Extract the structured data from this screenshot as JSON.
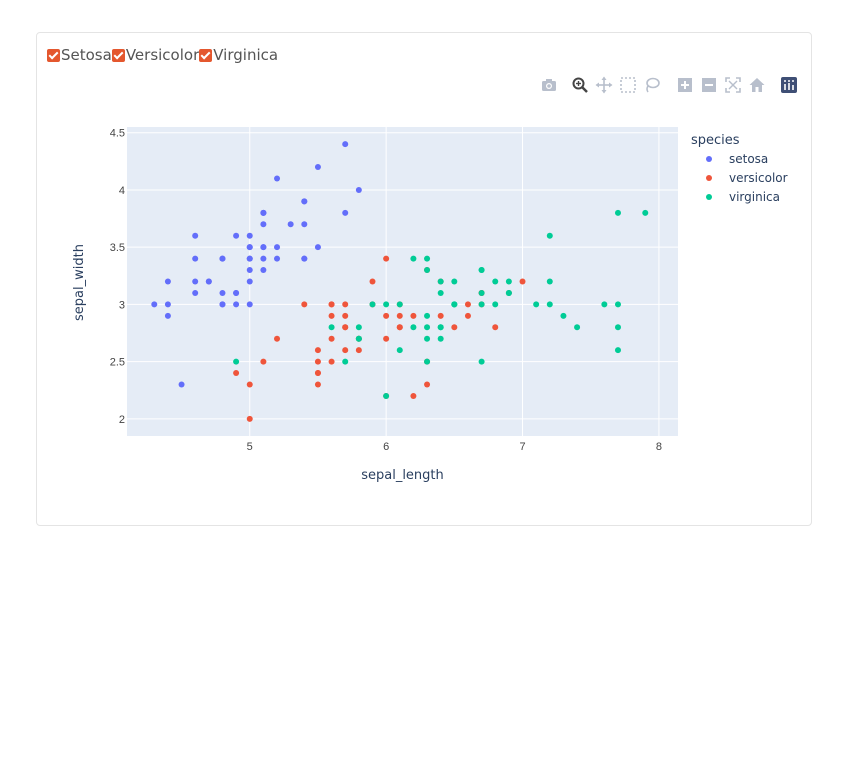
{
  "filters": [
    {
      "label": "Setosa",
      "checked": true
    },
    {
      "label": "Versicolor",
      "checked": true
    },
    {
      "label": "Virginica",
      "checked": true
    }
  ],
  "colors": {
    "setosa": "#636efa",
    "versicolor": "#ef553b",
    "virginica": "#00cc96",
    "checkbox": "#e4572e",
    "plot_bg": "#e5ecf6",
    "grid": "#ffffff"
  },
  "modebar_icons": [
    "camera-icon",
    "zoom-icon",
    "pan-icon",
    "box-select-icon",
    "lasso-select-icon",
    "zoom-in-icon",
    "zoom-out-icon",
    "autoscale-icon",
    "home-icon",
    "plotly-logo-icon"
  ],
  "chart_data": {
    "type": "scatter",
    "title": "",
    "xlabel": "sepal_length",
    "ylabel": "sepal_width",
    "xlim": [
      4.1,
      8.14
    ],
    "ylim": [
      1.85,
      4.55
    ],
    "xticks": [
      5,
      6,
      7,
      8
    ],
    "yticks": [
      2,
      2.5,
      3,
      3.5,
      4,
      4.5
    ],
    "grid": true,
    "legend": {
      "title": "species",
      "placement": "right"
    },
    "series": [
      {
        "name": "setosa",
        "color": "#636efa",
        "x": [
          5.1,
          4.9,
          4.7,
          4.6,
          5.0,
          5.4,
          4.6,
          5.0,
          4.4,
          4.9,
          5.4,
          4.8,
          4.8,
          4.3,
          5.8,
          5.7,
          5.4,
          5.1,
          5.7,
          5.1,
          5.4,
          5.1,
          4.6,
          5.1,
          4.8,
          5.0,
          5.0,
          5.2,
          5.2,
          4.7,
          4.8,
          5.4,
          5.2,
          5.5,
          4.9,
          5.0,
          5.5,
          4.9,
          4.4,
          5.1,
          5.0,
          4.5,
          4.4,
          5.0,
          5.1,
          4.8,
          5.1,
          4.6,
          5.3,
          5.0
        ],
        "y": [
          3.5,
          3.0,
          3.2,
          3.1,
          3.6,
          3.9,
          3.4,
          3.4,
          2.9,
          3.1,
          3.7,
          3.4,
          3.0,
          3.0,
          4.0,
          4.4,
          3.9,
          3.5,
          3.8,
          3.8,
          3.4,
          3.7,
          3.6,
          3.3,
          3.4,
          3.0,
          3.4,
          3.5,
          3.4,
          3.2,
          3.1,
          3.4,
          4.1,
          4.2,
          3.1,
          3.2,
          3.5,
          3.6,
          3.0,
          3.4,
          3.5,
          2.3,
          3.2,
          3.5,
          3.8,
          3.0,
          3.8,
          3.2,
          3.7,
          3.3
        ]
      },
      {
        "name": "versicolor",
        "color": "#ef553b",
        "x": [
          7.0,
          6.4,
          6.9,
          5.5,
          6.5,
          5.7,
          6.3,
          4.9,
          6.6,
          5.2,
          5.0,
          5.9,
          6.0,
          6.1,
          5.6,
          6.7,
          5.6,
          5.8,
          6.2,
          5.6,
          5.9,
          6.1,
          6.3,
          6.1,
          6.4,
          6.6,
          6.8,
          6.7,
          6.0,
          5.7,
          5.5,
          5.5,
          5.8,
          6.0,
          5.4,
          6.0,
          6.7,
          6.3,
          5.6,
          5.5,
          5.5,
          6.1,
          5.8,
          5.0,
          5.6,
          5.7,
          5.7,
          6.2,
          5.1,
          5.7
        ],
        "y": [
          3.2,
          3.2,
          3.1,
          2.3,
          2.8,
          2.8,
          3.3,
          2.4,
          2.9,
          2.7,
          2.0,
          3.0,
          2.2,
          2.9,
          2.9,
          3.1,
          3.0,
          2.7,
          2.2,
          2.5,
          3.2,
          2.8,
          2.5,
          2.8,
          2.9,
          3.0,
          2.8,
          3.0,
          2.9,
          2.6,
          2.4,
          2.4,
          2.7,
          2.7,
          3.0,
          3.4,
          3.1,
          2.3,
          3.0,
          2.5,
          2.6,
          3.0,
          2.6,
          2.3,
          2.7,
          3.0,
          2.9,
          2.9,
          2.5,
          2.8
        ]
      },
      {
        "name": "virginica",
        "color": "#00cc96",
        "x": [
          6.3,
          5.8,
          7.1,
          6.3,
          6.5,
          7.6,
          4.9,
          7.3,
          6.7,
          7.2,
          6.5,
          6.4,
          6.8,
          5.7,
          5.8,
          6.4,
          6.5,
          7.7,
          7.7,
          6.0,
          6.9,
          5.6,
          7.7,
          6.3,
          6.7,
          7.2,
          6.2,
          6.1,
          6.4,
          7.2,
          7.4,
          7.9,
          6.4,
          6.3,
          6.1,
          7.7,
          6.3,
          6.4,
          6.0,
          6.9,
          6.7,
          6.9,
          5.8,
          6.8,
          6.7,
          6.7,
          6.3,
          6.5,
          6.2,
          5.9
        ],
        "y": [
          3.3,
          2.7,
          3.0,
          2.9,
          3.0,
          3.0,
          2.5,
          2.9,
          2.5,
          3.6,
          3.2,
          2.7,
          3.0,
          2.5,
          2.8,
          3.2,
          3.0,
          3.8,
          2.6,
          2.2,
          3.2,
          2.8,
          2.8,
          2.7,
          3.3,
          3.2,
          2.8,
          3.0,
          2.8,
          3.0,
          2.8,
          3.8,
          2.8,
          2.8,
          2.6,
          3.0,
          3.4,
          3.1,
          3.0,
          3.1,
          3.1,
          3.1,
          2.7,
          3.2,
          3.3,
          3.0,
          2.5,
          3.0,
          3.4,
          3.0
        ]
      }
    ]
  }
}
